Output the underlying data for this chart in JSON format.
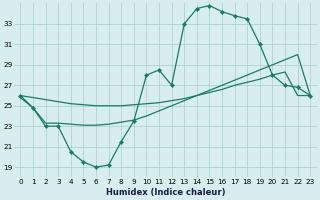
{
  "xlabel": "Humidex (Indice chaleur)",
  "background_color": "#d8eeee",
  "line_color": "#1a7a6a",
  "x_hours": [
    0,
    1,
    2,
    3,
    4,
    5,
    6,
    7,
    8,
    9,
    10,
    11,
    12,
    13,
    14,
    15,
    16,
    17,
    18,
    19,
    20,
    21,
    22,
    23
  ],
  "curve1_y": [
    26.0,
    24.8,
    23.0,
    23.0,
    20.5,
    19.5,
    19.0,
    19.2,
    21.5,
    23.5,
    28.0,
    28.5,
    27.0,
    33.0,
    34.5,
    34.8,
    34.2,
    33.8,
    33.5,
    31.0,
    28.0,
    27.0,
    26.8,
    26.0
  ],
  "curve2_y": [
    25.8,
    24.8,
    23.3,
    23.3,
    23.2,
    23.1,
    23.1,
    23.2,
    23.4,
    23.6,
    24.0,
    24.5,
    25.0,
    25.5,
    26.0,
    26.5,
    27.0,
    27.5,
    28.0,
    28.5,
    29.0,
    29.5,
    30.0,
    26.0
  ],
  "curve3_y": [
    26.0,
    25.8,
    25.6,
    25.4,
    25.2,
    25.1,
    25.0,
    25.0,
    25.0,
    25.1,
    25.2,
    25.3,
    25.5,
    25.7,
    26.0,
    26.3,
    26.6,
    27.0,
    27.3,
    27.6,
    28.0,
    28.3,
    26.0,
    26.0
  ],
  "ylim_min": 18,
  "ylim_max": 35,
  "yticks": [
    19,
    21,
    23,
    25,
    27,
    29,
    31,
    33
  ],
  "xticks": [
    0,
    1,
    2,
    3,
    4,
    5,
    6,
    7,
    8,
    9,
    10,
    11,
    12,
    13,
    14,
    15,
    16,
    17,
    18,
    19,
    20,
    21,
    22,
    23
  ],
  "grid_color": "#a8cccc",
  "markersize": 2.2,
  "linewidth": 0.9,
  "xlabel_fontsize": 6.0,
  "tick_fontsize": 5.2
}
